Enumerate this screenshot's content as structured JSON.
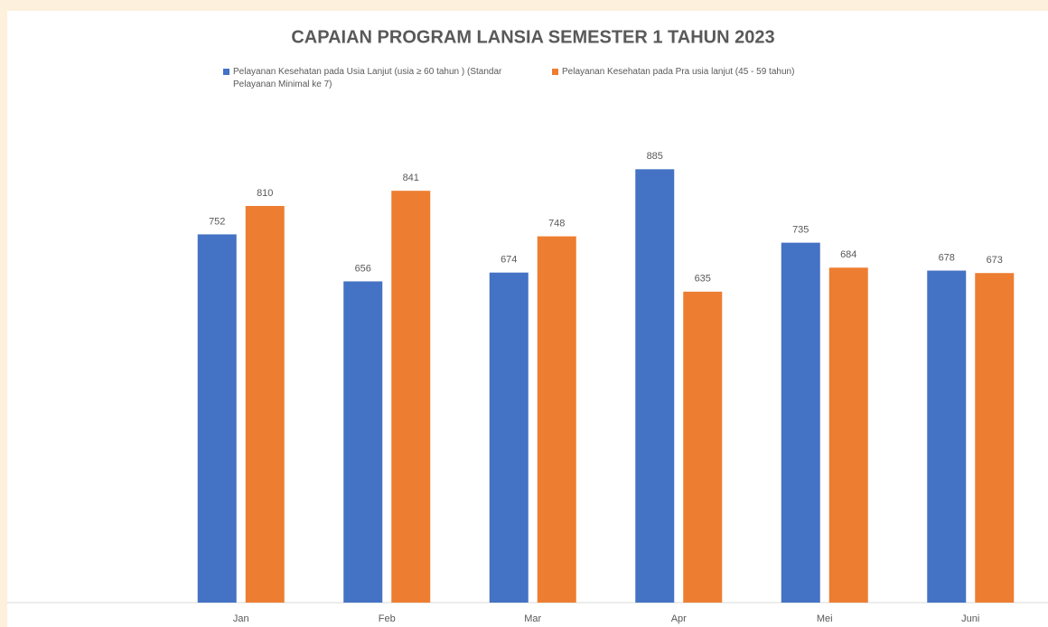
{
  "chart_data": {
    "type": "bar",
    "title": "CAPAIAN PROGRAM LANSIA SEMESTER 1 TAHUN 2023",
    "categories": [
      "Jan",
      "Feb",
      "Mar",
      "Apr",
      "Mei",
      "Juni"
    ],
    "series": [
      {
        "name": "Pelayanan Kesehatan pada Usia Lanjut (usia ≥ 60 tahun ) (Standar Pelayanan Minimal ke 7)",
        "color": "#4472c4",
        "values": [
          752,
          656,
          674,
          885,
          735,
          678
        ]
      },
      {
        "name": "Pelayanan Kesehatan pada  Pra usia lanjut  (45 - 59 tahun)",
        "color": "#ed7d31",
        "values": [
          810,
          841,
          748,
          635,
          684,
          673
        ]
      }
    ],
    "ylim": [
      0,
      1000
    ]
  }
}
